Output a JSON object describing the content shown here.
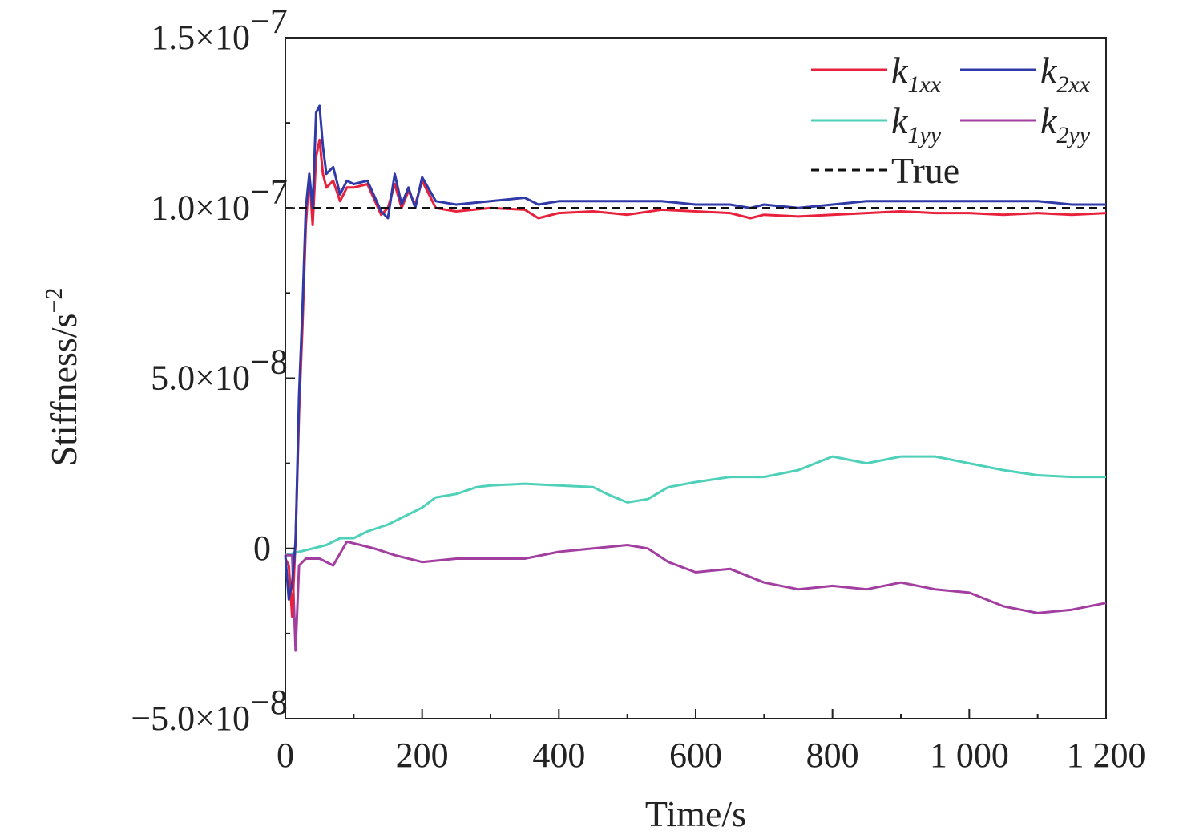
{
  "chart_data": {
    "type": "line",
    "xlabel": "Time/s",
    "ylabel": "Stiffness/s",
    "ylabel_sup": "−2",
    "xlim": [
      0,
      1200
    ],
    "ylim": [
      -5e-08,
      1.5e-07
    ],
    "x_ticks": [
      0,
      200,
      400,
      600,
      800,
      1000,
      1200
    ],
    "x_tick_labels": [
      "0",
      "200",
      "400",
      "600",
      "800",
      "1 000",
      "1 200"
    ],
    "y_ticks": [
      {
        "value": -5e-08,
        "mantissa": "−5.0×10",
        "exp": "−8"
      },
      {
        "value": 0,
        "mantissa": "0",
        "exp": ""
      },
      {
        "value": 5e-08,
        "mantissa": "5.0×10",
        "exp": "−8"
      },
      {
        "value": 1e-07,
        "mantissa": "1.0×10",
        "exp": "−7"
      },
      {
        "value": 1.5e-07,
        "mantissa": "1.5×10",
        "exp": "−7"
      }
    ],
    "grid": false,
    "legend_position": "top-right",
    "legend": [
      {
        "key": "k1xx",
        "main": "k",
        "sub": "1xx"
      },
      {
        "key": "k2xx",
        "main": "k",
        "sub": "2xx"
      },
      {
        "key": "k1yy",
        "main": "k",
        "sub": "1yy"
      },
      {
        "key": "k2yy",
        "main": "k",
        "sub": "2yy"
      },
      {
        "key": "true",
        "main": "True",
        "sub": ""
      }
    ],
    "series": [
      {
        "key": "k1xx",
        "color": "#e8213c",
        "style": "solid",
        "x": [
          0,
          5,
          10,
          15,
          20,
          25,
          30,
          35,
          40,
          45,
          50,
          55,
          60,
          70,
          80,
          90,
          100,
          120,
          140,
          150,
          160,
          170,
          180,
          190,
          200,
          220,
          250,
          300,
          350,
          370,
          400,
          450,
          500,
          550,
          600,
          650,
          680,
          700,
          750,
          800,
          850,
          900,
          950,
          1000,
          1050,
          1100,
          1150,
          1200
        ],
        "y": [
          -3e-09,
          -5e-09,
          -2e-08,
          3e-09,
          4e-08,
          6.5e-08,
          9.5e-08,
          1.1e-07,
          9.5e-08,
          1.15e-07,
          1.2e-07,
          1.1e-07,
          1.06e-07,
          1.08e-07,
          1.02e-07,
          1.06e-07,
          1.06e-07,
          1.07e-07,
          9.8e-08,
          1e-07,
          1.07e-07,
          1e-07,
          1.05e-07,
          1.01e-07,
          1.08e-07,
          1e-07,
          9.9e-08,
          1e-07,
          9.95e-08,
          9.7e-08,
          9.85e-08,
          9.9e-08,
          9.8e-08,
          9.95e-08,
          9.9e-08,
          9.85e-08,
          9.7e-08,
          9.8e-08,
          9.75e-08,
          9.8e-08,
          9.85e-08,
          9.9e-08,
          9.85e-08,
          9.85e-08,
          9.8e-08,
          9.85e-08,
          9.8e-08,
          9.85e-08
        ]
      },
      {
        "key": "k2xx",
        "color": "#2f3aa8",
        "style": "solid",
        "x": [
          0,
          5,
          10,
          15,
          20,
          25,
          30,
          35,
          40,
          45,
          50,
          55,
          60,
          70,
          80,
          90,
          100,
          120,
          140,
          150,
          160,
          170,
          180,
          190,
          200,
          220,
          250,
          300,
          350,
          370,
          400,
          450,
          500,
          550,
          600,
          650,
          680,
          700,
          750,
          800,
          850,
          900,
          950,
          1000,
          1050,
          1100,
          1150,
          1200
        ],
        "y": [
          -2e-09,
          -1.5e-08,
          -1e-08,
          2e-09,
          4.5e-08,
          7e-08,
          1e-07,
          1.1e-07,
          1e-07,
          1.28e-07,
          1.3e-07,
          1.18e-07,
          1.1e-07,
          1.12e-07,
          1.04e-07,
          1.08e-07,
          1.07e-07,
          1.08e-07,
          9.9e-08,
          9.7e-08,
          1.1e-07,
          1.01e-07,
          1.06e-07,
          1e-07,
          1.09e-07,
          1.02e-07,
          1.01e-07,
          1.02e-07,
          1.03e-07,
          1.01e-07,
          1.02e-07,
          1.02e-07,
          1.02e-07,
          1.02e-07,
          1.01e-07,
          1.01e-07,
          1e-07,
          1.01e-07,
          1e-07,
          1.01e-07,
          1.02e-07,
          1.02e-07,
          1.02e-07,
          1.02e-07,
          1.02e-07,
          1.02e-07,
          1.01e-07,
          1.01e-07
        ]
      },
      {
        "key": "k1yy",
        "color": "#4fd0b8",
        "style": "solid",
        "x": [
          0,
          20,
          40,
          60,
          80,
          100,
          120,
          150,
          180,
          200,
          220,
          250,
          280,
          300,
          350,
          400,
          450,
          470,
          500,
          530,
          560,
          600,
          650,
          680,
          700,
          750,
          800,
          850,
          900,
          950,
          1000,
          1050,
          1100,
          1150,
          1200
        ],
        "y": [
          -2e-09,
          -1e-09,
          0,
          1e-09,
          3e-09,
          3e-09,
          5e-09,
          7e-09,
          1e-08,
          1.2e-08,
          1.5e-08,
          1.6e-08,
          1.8e-08,
          1.85e-08,
          1.9e-08,
          1.85e-08,
          1.8e-08,
          1.6e-08,
          1.35e-08,
          1.45e-08,
          1.8e-08,
          1.95e-08,
          2.1e-08,
          2.1e-08,
          2.1e-08,
          2.3e-08,
          2.7e-08,
          2.5e-08,
          2.7e-08,
          2.7e-08,
          2.5e-08,
          2.3e-08,
          2.15e-08,
          2.1e-08,
          2.1e-08
        ]
      },
      {
        "key": "k2yy",
        "color": "#a23ea0",
        "style": "solid",
        "x": [
          0,
          10,
          15,
          20,
          30,
          50,
          70,
          90,
          110,
          130,
          160,
          200,
          250,
          300,
          350,
          400,
          450,
          500,
          530,
          560,
          600,
          650,
          700,
          750,
          800,
          850,
          900,
          950,
          1000,
          1050,
          1100,
          1150,
          1200
        ],
        "y": [
          -2e-09,
          -2e-09,
          -3e-08,
          -5e-09,
          -3e-09,
          -3e-09,
          -5e-09,
          2e-09,
          1e-09,
          0,
          -2e-09,
          -4e-09,
          -3e-09,
          -3e-09,
          -3e-09,
          -1e-09,
          0,
          1e-09,
          0,
          -4e-09,
          -7e-09,
          -6e-09,
          -1e-08,
          -1.2e-08,
          -1.1e-08,
          -1.2e-08,
          -1e-08,
          -1.2e-08,
          -1.3e-08,
          -1.7e-08,
          -1.9e-08,
          -1.8e-08,
          -1.6e-08
        ]
      },
      {
        "key": "true",
        "color": "#111111",
        "style": "dashed",
        "x": [
          0,
          1200
        ],
        "y": [
          1e-07,
          1e-07
        ]
      }
    ]
  }
}
